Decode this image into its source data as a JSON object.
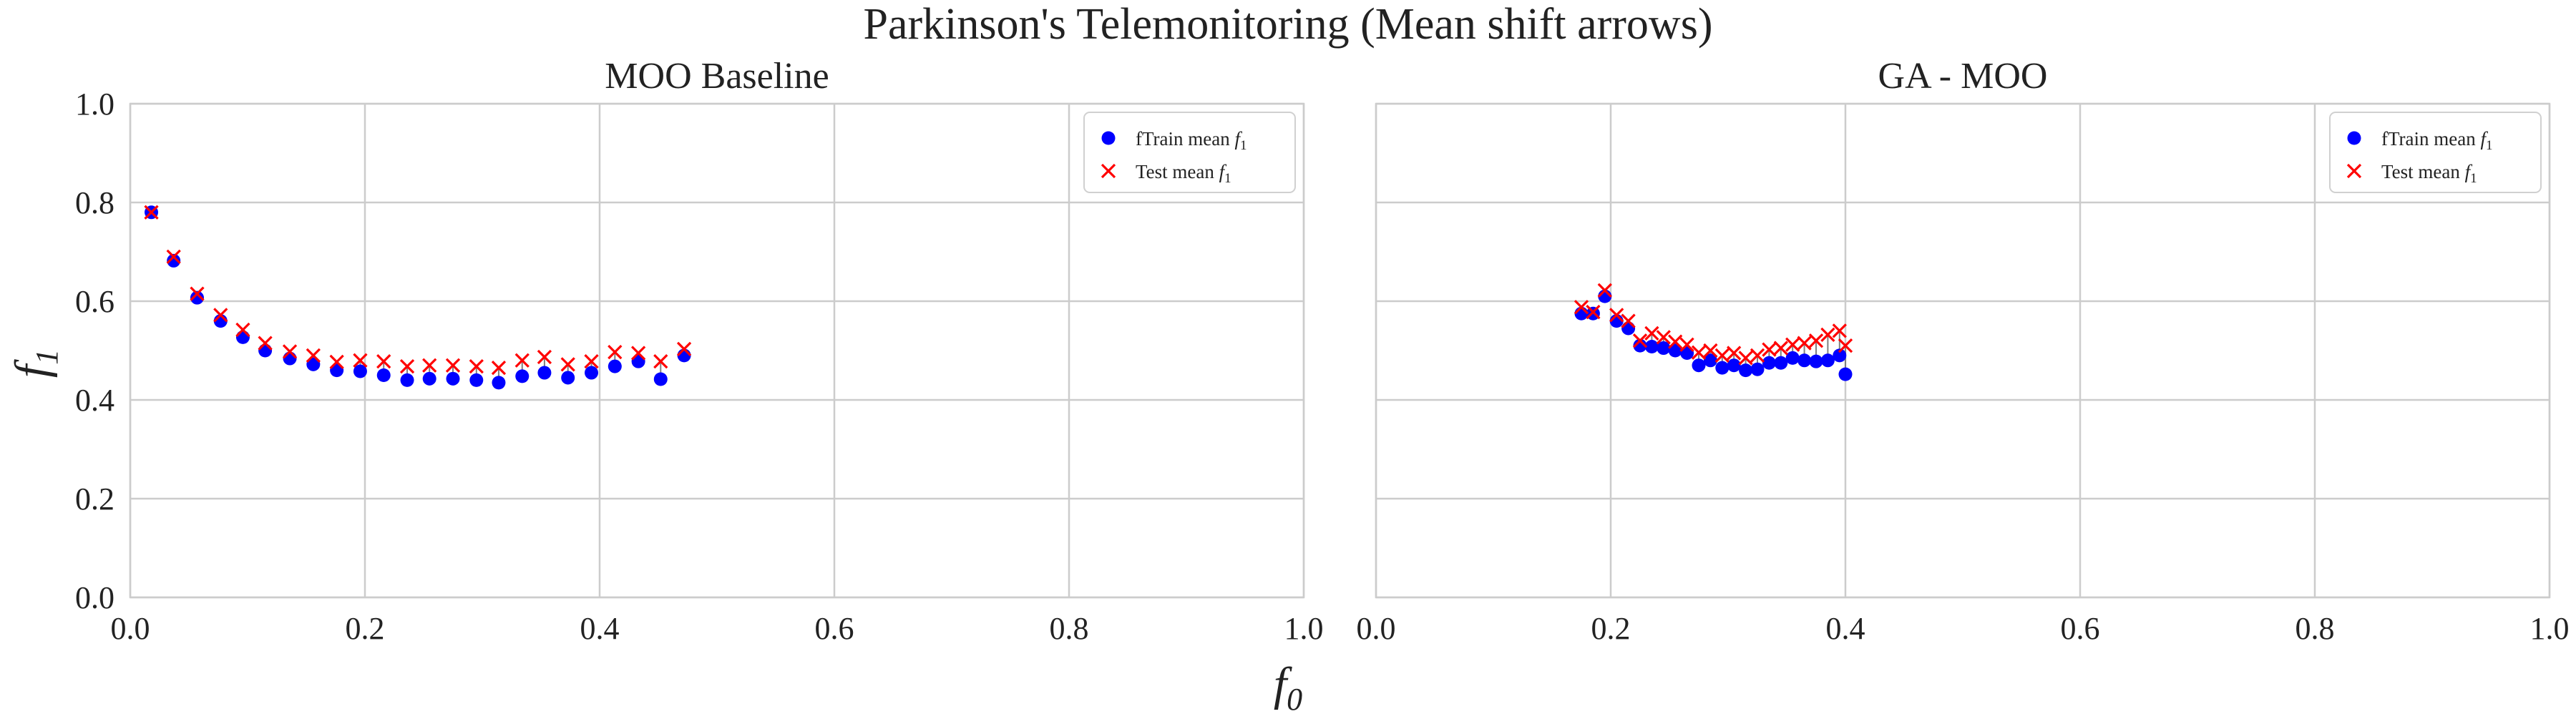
{
  "chart_data": {
    "type": "scatter",
    "title": "Parkinson's Telemonitoring (Mean shift arrows)",
    "xlabel": "f0",
    "ylabel": "f1",
    "xlim": [
      0.0,
      1.0
    ],
    "ylim": [
      0.0,
      1.0
    ],
    "xticks": [
      "0.0",
      "0.2",
      "0.4",
      "0.6",
      "0.8",
      "1.0"
    ],
    "yticks": [
      "0.0",
      "0.2",
      "0.4",
      "0.6",
      "0.8",
      "1.0"
    ],
    "grid": true,
    "legend_position": "upper-right",
    "colors": {
      "train": "#0000ff",
      "test": "#ff0000",
      "arrow": "#808080"
    },
    "panels": [
      {
        "title": "MOO Baseline",
        "legend": [
          "fTrain mean f1",
          "Test mean f1"
        ],
        "series": [
          {
            "name": "fTrain mean f1",
            "marker": "circle",
            "points": [
              [
                0.018,
                0.78
              ],
              [
                0.037,
                0.682
              ],
              [
                0.057,
                0.607
              ],
              [
                0.077,
                0.56
              ],
              [
                0.096,
                0.527
              ],
              [
                0.115,
                0.5
              ],
              [
                0.136,
                0.484
              ],
              [
                0.156,
                0.472
              ],
              [
                0.176,
                0.46
              ],
              [
                0.196,
                0.458
              ],
              [
                0.216,
                0.45
              ],
              [
                0.236,
                0.44
              ],
              [
                0.255,
                0.443
              ],
              [
                0.275,
                0.443
              ],
              [
                0.295,
                0.44
              ],
              [
                0.314,
                0.435
              ],
              [
                0.334,
                0.448
              ],
              [
                0.353,
                0.455
              ],
              [
                0.373,
                0.445
              ],
              [
                0.393,
                0.455
              ],
              [
                0.413,
                0.468
              ],
              [
                0.433,
                0.478
              ],
              [
                0.452,
                0.442
              ],
              [
                0.472,
                0.49
              ]
            ]
          },
          {
            "name": "Test mean f1",
            "marker": "x",
            "points": [
              [
                0.018,
                0.78
              ],
              [
                0.037,
                0.69
              ],
              [
                0.057,
                0.615
              ],
              [
                0.077,
                0.572
              ],
              [
                0.096,
                0.542
              ],
              [
                0.115,
                0.515
              ],
              [
                0.136,
                0.498
              ],
              [
                0.156,
                0.49
              ],
              [
                0.176,
                0.477
              ],
              [
                0.196,
                0.48
              ],
              [
                0.216,
                0.478
              ],
              [
                0.236,
                0.468
              ],
              [
                0.255,
                0.47
              ],
              [
                0.275,
                0.47
              ],
              [
                0.295,
                0.468
              ],
              [
                0.314,
                0.465
              ],
              [
                0.334,
                0.48
              ],
              [
                0.353,
                0.487
              ],
              [
                0.373,
                0.472
              ],
              [
                0.393,
                0.478
              ],
              [
                0.413,
                0.497
              ],
              [
                0.433,
                0.495
              ],
              [
                0.452,
                0.478
              ],
              [
                0.472,
                0.503
              ]
            ]
          }
        ]
      },
      {
        "title": "GA - MOO",
        "legend": [
          "fTrain mean f1",
          "Test mean f1"
        ],
        "series": [
          {
            "name": "fTrain mean f1",
            "marker": "circle",
            "points": [
              [
                0.175,
                0.575
              ],
              [
                0.185,
                0.575
              ],
              [
                0.195,
                0.61
              ],
              [
                0.205,
                0.56
              ],
              [
                0.215,
                0.545
              ],
              [
                0.225,
                0.51
              ],
              [
                0.235,
                0.508
              ],
              [
                0.245,
                0.505
              ],
              [
                0.255,
                0.5
              ],
              [
                0.265,
                0.495
              ],
              [
                0.275,
                0.47
              ],
              [
                0.285,
                0.48
              ],
              [
                0.295,
                0.465
              ],
              [
                0.305,
                0.47
              ],
              [
                0.315,
                0.46
              ],
              [
                0.325,
                0.462
              ],
              [
                0.335,
                0.475
              ],
              [
                0.345,
                0.475
              ],
              [
                0.355,
                0.485
              ],
              [
                0.365,
                0.48
              ],
              [
                0.375,
                0.478
              ],
              [
                0.385,
                0.48
              ],
              [
                0.395,
                0.49
              ],
              [
                0.4,
                0.452
              ]
            ]
          },
          {
            "name": "Test mean f1",
            "marker": "x",
            "points": [
              [
                0.175,
                0.588
              ],
              [
                0.185,
                0.578
              ],
              [
                0.195,
                0.622
              ],
              [
                0.205,
                0.572
              ],
              [
                0.215,
                0.56
              ],
              [
                0.225,
                0.52
              ],
              [
                0.235,
                0.535
              ],
              [
                0.245,
                0.527
              ],
              [
                0.255,
                0.518
              ],
              [
                0.265,
                0.512
              ],
              [
                0.275,
                0.496
              ],
              [
                0.285,
                0.5
              ],
              [
                0.295,
                0.49
              ],
              [
                0.305,
                0.495
              ],
              [
                0.315,
                0.485
              ],
              [
                0.325,
                0.49
              ],
              [
                0.335,
                0.502
              ],
              [
                0.345,
                0.505
              ],
              [
                0.355,
                0.512
              ],
              [
                0.365,
                0.515
              ],
              [
                0.375,
                0.52
              ],
              [
                0.385,
                0.532
              ],
              [
                0.395,
                0.54
              ],
              [
                0.4,
                0.51
              ]
            ]
          }
        ]
      }
    ]
  }
}
